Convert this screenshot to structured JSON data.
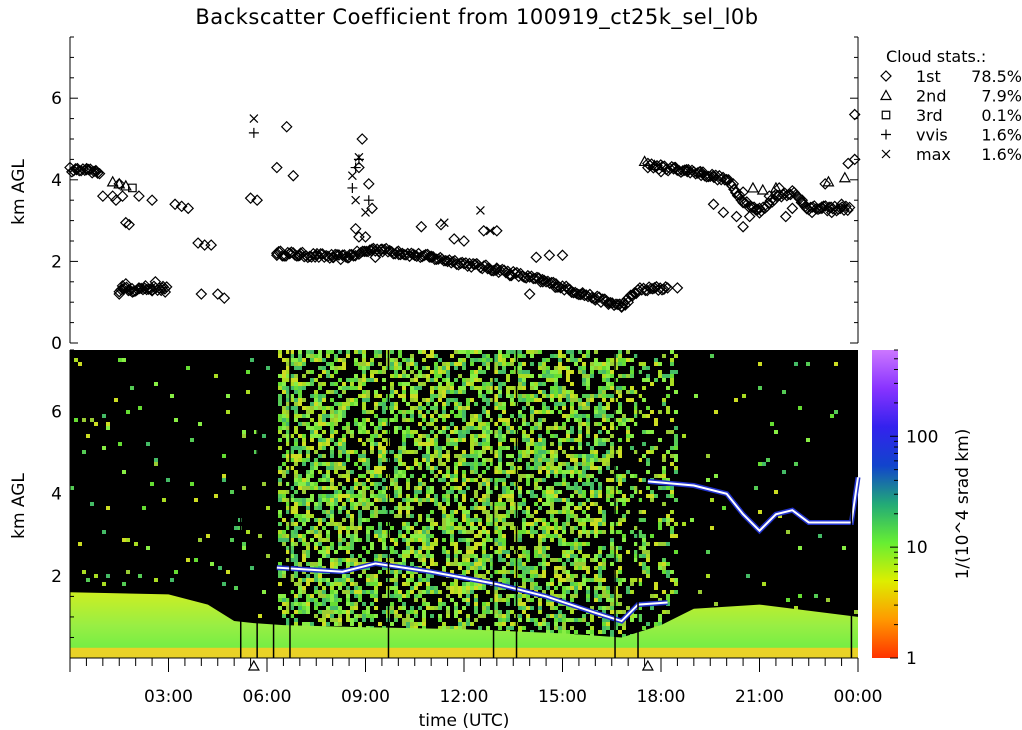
{
  "title": "Backscatter Coefficient from 100919_ct25k_sel_l0b",
  "legend": {
    "heading": "Cloud stats.:",
    "entries": [
      {
        "marker": "diamond",
        "label": "1st",
        "value": "78.5%"
      },
      {
        "marker": "triangle",
        "label": "2nd",
        "value": "7.9%"
      },
      {
        "marker": "square",
        "label": "3rd",
        "value": "0.1%"
      },
      {
        "marker": "plus",
        "label": "vvis",
        "value": "1.6%"
      },
      {
        "marker": "cross",
        "label": "max",
        "value": "1.6%"
      }
    ]
  },
  "colorbar": {
    "label": "1/(10^4 srad km)",
    "ticks": [
      "1",
      "10",
      "100"
    ],
    "scale": "log",
    "range": [
      1,
      600
    ],
    "colors": [
      "#ff3300",
      "#ff9900",
      "#ddee00",
      "#66ee33",
      "#22aa77",
      "#1144cc",
      "#3322ee",
      "#8833ff",
      "#cc77ff"
    ]
  },
  "chart_data": [
    {
      "type": "scatter",
      "panel": "cloud-base",
      "ylabel": "km AGL",
      "ylim": [
        0,
        7.5
      ],
      "xlim": [
        0,
        24
      ],
      "yticks": [
        "0",
        "2",
        "4",
        "6"
      ],
      "series": [
        {
          "name": "1st",
          "marker": "diamond",
          "points": [
            [
              0.2,
              4.25
            ],
            [
              0.5,
              4.25
            ],
            [
              0.8,
              4.2
            ],
            [
              0.9,
              4.15
            ],
            [
              1.0,
              3.6
            ],
            [
              1.3,
              3.6
            ],
            [
              1.4,
              3.5
            ],
            [
              1.5,
              3.9
            ],
            [
              1.6,
              3.6
            ],
            [
              1.7,
              2.95
            ],
            [
              1.8,
              2.9
            ],
            [
              1.5,
              1.2
            ],
            [
              1.6,
              1.4
            ],
            [
              1.7,
              1.45
            ],
            [
              1.9,
              1.25
            ],
            [
              2.1,
              1.35
            ],
            [
              2.3,
              1.4
            ],
            [
              2.5,
              1.3
            ],
            [
              2.6,
              1.5
            ],
            [
              2.8,
              1.35
            ],
            [
              2.9,
              1.25
            ],
            [
              2.1,
              3.6
            ],
            [
              2.5,
              3.5
            ],
            [
              3.2,
              3.4
            ],
            [
              3.4,
              3.35
            ],
            [
              3.6,
              3.3
            ],
            [
              3.9,
              2.45
            ],
            [
              4.1,
              2.4
            ],
            [
              4.3,
              2.4
            ],
            [
              4.0,
              1.2
            ],
            [
              4.5,
              1.2
            ],
            [
              4.7,
              1.1
            ],
            [
              5.5,
              3.55
            ],
            [
              5.7,
              3.5
            ],
            [
              6.3,
              4.3
            ],
            [
              6.6,
              5.3
            ],
            [
              6.8,
              4.1
            ],
            [
              6.3,
              2.2
            ],
            [
              6.7,
              2.2
            ],
            [
              7.0,
              2.15
            ],
            [
              7.5,
              2.15
            ],
            [
              8.0,
              2.1
            ],
            [
              8.3,
              2.15
            ],
            [
              8.5,
              2.1
            ],
            [
              8.7,
              2.8
            ],
            [
              8.8,
              2.6
            ],
            [
              9.0,
              2.6
            ],
            [
              9.2,
              2.3
            ],
            [
              9.3,
              2.1
            ],
            [
              8.9,
              5.0
            ],
            [
              8.8,
              4.3
            ],
            [
              9.1,
              3.9
            ],
            [
              9.2,
              3.3
            ],
            [
              9.5,
              2.3
            ],
            [
              10.0,
              2.25
            ],
            [
              10.5,
              2.15
            ],
            [
              11.0,
              2.1
            ],
            [
              11.5,
              2.0
            ],
            [
              10.7,
              2.85
            ],
            [
              11.3,
              2.9
            ],
            [
              11.7,
              2.55
            ],
            [
              12.0,
              2.5
            ],
            [
              11.9,
              1.95
            ],
            [
              12.5,
              1.85
            ],
            [
              13.0,
              1.8
            ],
            [
              12.6,
              2.75
            ],
            [
              13.0,
              2.75
            ],
            [
              13.4,
              1.65
            ],
            [
              13.9,
              1.6
            ],
            [
              14.4,
              1.5
            ],
            [
              14.8,
              1.45
            ],
            [
              14.2,
              2.1
            ],
            [
              14.6,
              2.15
            ],
            [
              15.0,
              2.15
            ],
            [
              14.0,
              1.2
            ],
            [
              15.2,
              1.3
            ],
            [
              15.6,
              1.2
            ],
            [
              16.0,
              1.1
            ],
            [
              16.4,
              0.95
            ],
            [
              16.8,
              0.9
            ],
            [
              17.0,
              1.0
            ],
            [
              17.3,
              1.3
            ],
            [
              17.8,
              1.35
            ],
            [
              18.2,
              1.35
            ],
            [
              18.5,
              1.35
            ],
            [
              17.6,
              4.4
            ],
            [
              18.0,
              4.2
            ],
            [
              18.4,
              4.3
            ],
            [
              18.8,
              4.2
            ],
            [
              19.2,
              4.2
            ],
            [
              19.6,
              4.1
            ],
            [
              20.0,
              4.0
            ],
            [
              20.2,
              3.9
            ],
            [
              20.5,
              3.7
            ],
            [
              20.7,
              3.1
            ],
            [
              21.0,
              3.3
            ],
            [
              21.3,
              3.6
            ],
            [
              21.6,
              3.8
            ],
            [
              21.8,
              3.1
            ],
            [
              22.0,
              3.3
            ],
            [
              22.3,
              3.5
            ],
            [
              22.6,
              3.2
            ],
            [
              22.9,
              3.3
            ],
            [
              23.2,
              3.2
            ],
            [
              23.5,
              3.4
            ],
            [
              19.6,
              3.4
            ],
            [
              19.9,
              3.2
            ],
            [
              20.3,
              3.1
            ],
            [
              20.5,
              2.85
            ],
            [
              23.0,
              3.9
            ],
            [
              23.7,
              4.4
            ],
            [
              23.9,
              4.5
            ],
            [
              23.9,
              5.6
            ]
          ]
        },
        {
          "name": "2nd",
          "marker": "triangle",
          "points": [
            [
              1.3,
              3.95
            ],
            [
              1.5,
              3.9
            ],
            [
              1.7,
              3.85
            ],
            [
              17.5,
              4.45
            ],
            [
              17.8,
              4.35
            ],
            [
              20.8,
              3.8
            ],
            [
              21.1,
              3.75
            ],
            [
              21.5,
              3.8
            ],
            [
              23.1,
              3.95
            ],
            [
              23.6,
              4.05
            ]
          ]
        },
        {
          "name": "3rd",
          "marker": "square",
          "points": [
            [
              1.9,
              3.8
            ]
          ]
        },
        {
          "name": "vvis",
          "marker": "plus",
          "points": [
            [
              5.6,
              5.15
            ],
            [
              8.6,
              3.8
            ],
            [
              8.7,
              4.3
            ],
            [
              8.8,
              4.5
            ],
            [
              9.1,
              3.5
            ]
          ]
        },
        {
          "name": "max",
          "marker": "cross",
          "points": [
            [
              5.6,
              5.5
            ],
            [
              8.6,
              4.1
            ],
            [
              8.8,
              4.55
            ],
            [
              8.7,
              3.5
            ],
            [
              9.0,
              3.2
            ],
            [
              11.4,
              2.95
            ],
            [
              12.5,
              3.25
            ],
            [
              12.8,
              2.75
            ]
          ]
        }
      ]
    },
    {
      "type": "heatmap",
      "panel": "backscatter",
      "xlabel": "time (UTC)",
      "ylabel": "km AGL",
      "xlim": [
        0,
        24
      ],
      "ylim": [
        0,
        7.5
      ],
      "yticks": [
        "2",
        "4",
        "6"
      ],
      "xticks": [
        "03:00",
        "06:00",
        "09:00",
        "12:00",
        "15:00",
        "18:00",
        "21:00",
        "00:00"
      ],
      "xtick_hours": [
        3,
        6,
        9,
        12,
        15,
        18,
        21,
        24
      ],
      "gap_markers_hours": [
        5.6,
        17.6
      ],
      "layers": [
        {
          "name": "boundary-layer",
          "points": [
            [
              0,
              1.6
            ],
            [
              3,
              1.55
            ],
            [
              4.2,
              1.3
            ],
            [
              5.0,
              0.9
            ],
            [
              5.6,
              0.85
            ],
            [
              6.5,
              0.8
            ],
            [
              9,
              0.75
            ],
            [
              12,
              0.7
            ],
            [
              15,
              0.6
            ],
            [
              16.8,
              0.5
            ],
            [
              18,
              0.8
            ],
            [
              19,
              1.2
            ],
            [
              21,
              1.3
            ],
            [
              24,
              1.0
            ]
          ]
        },
        {
          "name": "cloud-layer",
          "points": [
            [
              6.3,
              2.2
            ],
            [
              8.3,
              2.1
            ],
            [
              9.3,
              2.3
            ],
            [
              11,
              2.1
            ],
            [
              13,
              1.8
            ],
            [
              14.5,
              1.5
            ],
            [
              16,
              1.1
            ],
            [
              16.8,
              0.9
            ],
            [
              17.3,
              1.3
            ],
            [
              18.2,
              1.35
            ]
          ]
        },
        {
          "name": "upper-cloud-layer",
          "points": [
            [
              17.6,
              4.3
            ],
            [
              19,
              4.2
            ],
            [
              20,
              4.0
            ],
            [
              20.5,
              3.5
            ],
            [
              21,
              3.1
            ],
            [
              21.5,
              3.5
            ],
            [
              22,
              3.6
            ],
            [
              22.5,
              3.3
            ],
            [
              23.8,
              3.3
            ],
            [
              24,
              4.4
            ]
          ]
        }
      ]
    }
  ]
}
